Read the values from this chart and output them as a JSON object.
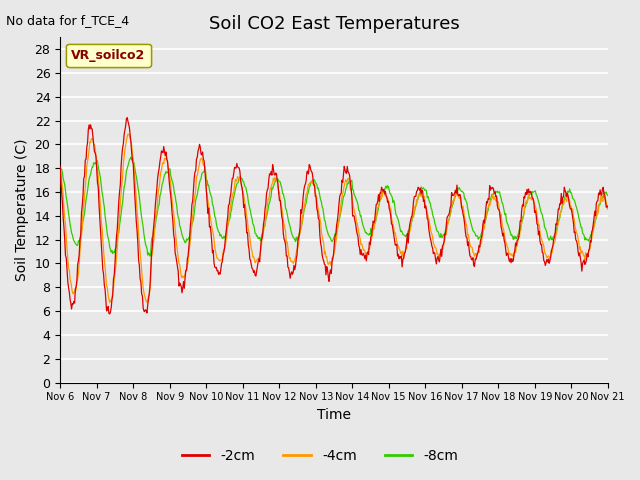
{
  "title": "Soil CO2 East Temperatures",
  "top_left_text": "No data for f_TCE_4",
  "ylabel": "Soil Temperature (C)",
  "xlabel": "Time",
  "ylim": [
    0,
    29
  ],
  "yticks": [
    0,
    2,
    4,
    6,
    8,
    10,
    12,
    14,
    16,
    18,
    20,
    22,
    24,
    26,
    28
  ],
  "xtick_labels": [
    "Nov 6",
    "Nov 7",
    "Nov 8",
    "Nov 9",
    "Nov 10",
    "Nov 11",
    "Nov 12",
    "Nov 13",
    "Nov 14",
    "Nov 15",
    "Nov 16",
    "Nov 17",
    "Nov 18",
    "Nov 19",
    "Nov 20",
    "Nov 21"
  ],
  "legend_label": "VR_soilco2",
  "line_neg2cm_color": "#dd0000",
  "line_neg4cm_color": "#ff9900",
  "line_neg8cm_color": "#33cc00",
  "legend_neg2cm": "-2cm",
  "legend_neg4cm": "-4cm",
  "legend_neg8cm": "-8cm",
  "plot_bg_color": "#e8e8e8",
  "grid_color": "#ffffff",
  "title_fontsize": 13,
  "label_fontsize": 10
}
